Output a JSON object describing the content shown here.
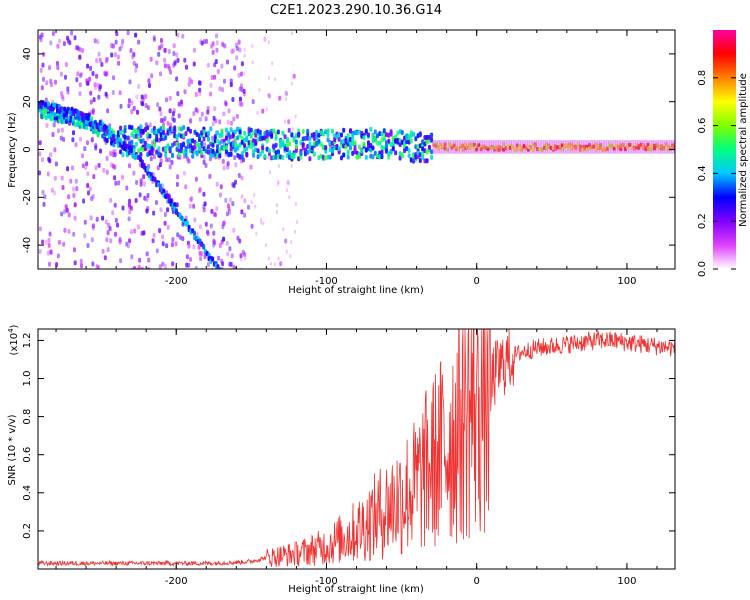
{
  "title": "C2E1.2023.290.10.36.G14",
  "chart_data": [
    {
      "type": "heatmap",
      "xlabel": "Height of straight line (km)",
      "ylabel": "Frequency (Hz)",
      "xlim": [
        -292,
        132
      ],
      "ylim": [
        -50,
        50
      ],
      "xticks": [
        -200,
        -100,
        0,
        100
      ],
      "xtick_labels": [
        "-200",
        "-100",
        "0",
        "100"
      ],
      "yticks": [
        -40,
        -20,
        0,
        20,
        40
      ],
      "ytick_labels": [
        "-40",
        "-20",
        "0",
        "20",
        "40"
      ],
      "colorbar": {
        "label": "Normalized spectral amplitude",
        "range": [
          0,
          1
        ],
        "ticks": [
          0.0,
          0.2,
          0.4,
          0.6,
          0.8
        ],
        "tick_labels": [
          "0.0",
          "0.2",
          "0.4",
          "0.6",
          "0.8"
        ],
        "colors": [
          "#ffffff",
          "#e040fb",
          "#7f00ff",
          "#0000ff",
          "#00c8ff",
          "#00ff80",
          "#80ff00",
          "#ffff00",
          "#ff8000",
          "#ff0000",
          "#ff00a0"
        ]
      },
      "features": [
        {
          "name": "descending trace",
          "points": [
            [
              -292,
              19
            ],
            [
              -270,
              16
            ],
            [
              -250,
              9
            ],
            [
              -230,
              -1
            ],
            [
              -210,
              -17
            ],
            [
              -195,
              -30
            ],
            [
              -180,
              -44
            ],
            [
              -172,
              -50
            ]
          ]
        },
        {
          "name": "main band center",
          "points": [
            [
              -292,
              17
            ],
            [
              -260,
              12
            ],
            [
              -240,
              4
            ],
            [
              -160,
              3
            ],
            [
              -120,
              2
            ],
            [
              -60,
              3
            ],
            [
              -40,
              1
            ],
            [
              0,
              1
            ],
            [
              132,
              1
            ]
          ]
        }
      ]
    },
    {
      "type": "line",
      "xlabel": "Height of straight line (km)",
      "ylabel": "SNR (10 * v/v)",
      "y_multiplier_label": "(x10",
      "y_multiplier_exp": "4",
      "y_multiplier_close": ")",
      "xlim": [
        -292,
        132
      ],
      "ylim": [
        0,
        1.26
      ],
      "xticks": [
        -200,
        -100,
        0,
        100
      ],
      "xtick_labels": [
        "-200",
        "-100",
        "0",
        "100"
      ],
      "yticks": [
        0.2,
        0.4,
        0.6,
        0.8,
        1.0,
        1.2
      ],
      "ytick_labels": [
        "0.2",
        "0.4",
        "0.6",
        "0.8",
        "1.0",
        "1.2"
      ],
      "series": [
        {
          "color": "#f03232",
          "x": [
            -292,
            -260,
            -230,
            -200,
            -180,
            -160,
            -150,
            -140,
            -130,
            -120,
            -110,
            -100,
            -90,
            -80,
            -70,
            -60,
            -50,
            -40,
            -35,
            -30,
            -25,
            -20,
            -15,
            -10,
            -5,
            0,
            5,
            10,
            15,
            20,
            25,
            30,
            40,
            50,
            60,
            70,
            80,
            90,
            100,
            110,
            120,
            132
          ],
          "y": [
            0.03,
            0.03,
            0.03,
            0.03,
            0.03,
            0.035,
            0.04,
            0.06,
            0.07,
            0.08,
            0.1,
            0.12,
            0.16,
            0.2,
            0.26,
            0.32,
            0.38,
            0.44,
            0.5,
            0.55,
            0.6,
            0.66,
            0.72,
            0.8,
            0.85,
            0.88,
            0.95,
            1.0,
            1.05,
            1.1,
            1.12,
            1.14,
            1.16,
            1.17,
            1.18,
            1.19,
            1.2,
            1.2,
            1.19,
            1.18,
            1.17,
            1.16
          ]
        }
      ]
    }
  ]
}
